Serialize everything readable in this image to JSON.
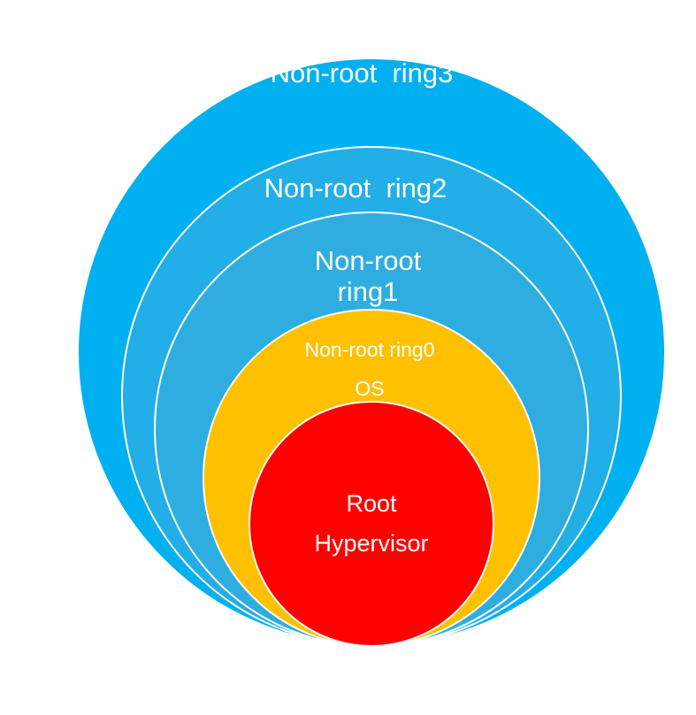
{
  "diagram": {
    "rings": [
      {
        "id": "ring3",
        "label_lines": [
          "Non-root  ring3"
        ],
        "fill": "#00b0f0",
        "stroke": "#ffffff"
      },
      {
        "id": "ring2",
        "label_lines": [
          "Non-root  ring2"
        ],
        "fill": "#22aee6",
        "stroke": "#ffffff"
      },
      {
        "id": "ring1",
        "label_lines": [
          "Non-root",
          "ring1"
        ],
        "fill": "#2eaee0",
        "stroke": "#ffffff"
      },
      {
        "id": "ring0",
        "label_lines": [
          "Non-root ring0",
          "OS"
        ],
        "fill": "#ffc000",
        "stroke": "#ffffff"
      },
      {
        "id": "root",
        "label_lines": [
          "Root",
          "Hypervisor"
        ],
        "fill": "#ff0000",
        "stroke": "#ffffff"
      }
    ]
  }
}
